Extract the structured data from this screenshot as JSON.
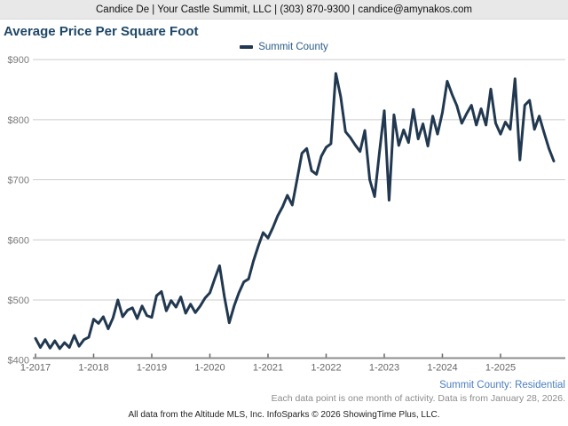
{
  "header": {
    "contact": "Candice De | Your Castle Summit, LLC | (303) 870-9300 | candice@amynakos.com"
  },
  "chart": {
    "title": "Average Price Per Square Foot",
    "legend_label": "Summit County"
  },
  "chart_data": {
    "type": "line",
    "title": "Average Price Per Square Foot",
    "series": [
      {
        "name": "Summit County",
        "start_month": "1-2017",
        "frequency": "monthly",
        "values": [
          436,
          421,
          434,
          420,
          432,
          419,
          429,
          421,
          441,
          423,
          434,
          438,
          468,
          461,
          472,
          452,
          470,
          500,
          472,
          483,
          487,
          469,
          490,
          474,
          471,
          507,
          514,
          482,
          499,
          488,
          505,
          478,
          493,
          479,
          490,
          503,
          512,
          535,
          557,
          505,
          462,
          490,
          512,
          530,
          535,
          565,
          590,
          612,
          603,
          620,
          640,
          655,
          674,
          658,
          700,
          744,
          752,
          715,
          709,
          739,
          754,
          760,
          877,
          838,
          780,
          770,
          758,
          747,
          782,
          700,
          672,
          745,
          815,
          666,
          808,
          757,
          783,
          762,
          817,
          768,
          793,
          756,
          806,
          776,
          812,
          864,
          842,
          823,
          794,
          810,
          824,
          791,
          818,
          791,
          851,
          794,
          776,
          796,
          784,
          868,
          733,
          824,
          832,
          784,
          806,
          778,
          752,
          731
        ]
      }
    ],
    "x_tick_labels": [
      "1-2017",
      "1-2018",
      "1-2019",
      "1-2020",
      "1-2021",
      "1-2022",
      "1-2023",
      "1-2024",
      "1-2025"
    ],
    "y_tick_labels": [
      "$400",
      "$500",
      "$600",
      "$700",
      "$800",
      "$900"
    ],
    "ylim": [
      400,
      900
    ],
    "grid": "horizontal",
    "legend_position": "top-center",
    "colors": {
      "line": "#213850",
      "grid": "#cccccc",
      "axis": "#8c8c8c",
      "tick_text": "#666666",
      "y_label_text": "#7a7a7a"
    }
  },
  "footer": {
    "series_descriptor": "Summit County: Residential",
    "note": "Each data point is one month of activity. Data is from January 28, 2026.",
    "attribution": "All data from the Altitude MLS, Inc. InfoSparks © 2026 ShowingTime Plus, LLC."
  }
}
